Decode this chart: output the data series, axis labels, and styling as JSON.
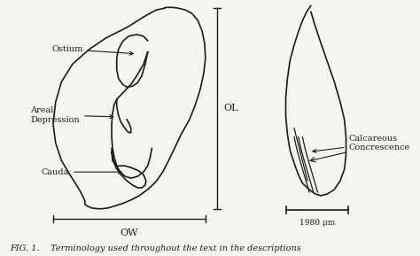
{
  "background_color": "#f5f5f0",
  "title_text": "FIG. 1.    Terminology used throughout the text in the descriptions",
  "title_fontsize": 7,
  "label_fontsize": 7,
  "scale_bar_text": "1980 μm",
  "OL_label": "OL",
  "OW_label": "OW",
  "labels_left": [
    "Ostium",
    "Areal\nDepression",
    "Cauda"
  ],
  "labels_right": [
    "Calcareous\nConcrescence"
  ]
}
